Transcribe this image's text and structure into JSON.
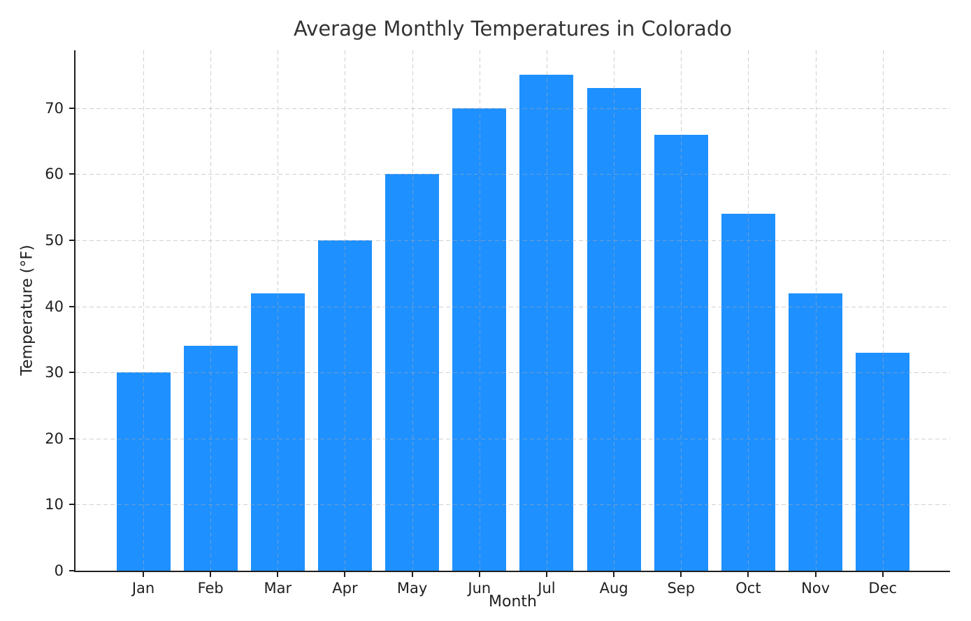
{
  "chart_data": {
    "type": "bar",
    "title": "Average Monthly Temperatures in Colorado",
    "xlabel": "Month",
    "ylabel": "Temperature (°F)",
    "categories": [
      "Jan",
      "Feb",
      "Mar",
      "Apr",
      "May",
      "Jun",
      "Jul",
      "Aug",
      "Sep",
      "Oct",
      "Nov",
      "Dec"
    ],
    "values": [
      30,
      34,
      42,
      50,
      60,
      70,
      75,
      73,
      66,
      54,
      42,
      33
    ],
    "yticks": [
      0,
      10,
      20,
      30,
      40,
      50,
      60,
      70
    ],
    "ylim": [
      0,
      78.75
    ],
    "grid": true,
    "legend": false,
    "bar_color": "#1E90FF",
    "grid_color": "#c8c8c8",
    "axis_color": "#1f1f1f",
    "title_color": "#333333",
    "background_color": "#ffffff"
  }
}
